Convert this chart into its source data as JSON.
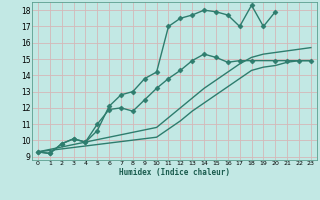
{
  "xlabel": "Humidex (Indice chaleur)",
  "background_color": "#c2e8e4",
  "grid_color": "#d4b8b8",
  "line_color": "#2e7d6e",
  "xlim": [
    -0.5,
    23.5
  ],
  "ylim": [
    8.8,
    18.5
  ],
  "xticks": [
    0,
    1,
    2,
    3,
    4,
    5,
    6,
    7,
    8,
    9,
    10,
    11,
    12,
    13,
    14,
    15,
    16,
    17,
    18,
    19,
    20,
    21,
    22,
    23
  ],
  "yticks": [
    9,
    10,
    11,
    12,
    13,
    14,
    15,
    16,
    17,
    18
  ],
  "series": [
    {
      "x": [
        0,
        1,
        2,
        3,
        4,
        5,
        6,
        7,
        8,
        9,
        10,
        11,
        12,
        13,
        14,
        15,
        16,
        17,
        18,
        19,
        20
      ],
      "y": [
        9.3,
        9.2,
        9.8,
        10.1,
        9.9,
        10.6,
        12.1,
        12.8,
        13.0,
        13.8,
        14.2,
        17.0,
        17.5,
        17.7,
        18.0,
        17.9,
        17.7,
        17.0,
        18.3,
        17.0,
        17.9
      ],
      "marker": "D",
      "markersize": 2.5,
      "linewidth": 1.0
    },
    {
      "x": [
        0,
        1,
        2,
        3,
        4,
        5,
        6,
        7,
        8,
        9,
        10,
        11,
        12,
        13,
        14,
        15,
        16,
        17,
        18,
        20,
        21,
        22,
        23
      ],
      "y": [
        9.3,
        9.2,
        9.8,
        10.1,
        9.9,
        11.0,
        11.9,
        12.0,
        11.8,
        12.5,
        13.2,
        13.8,
        14.3,
        14.9,
        15.3,
        15.1,
        14.8,
        14.9,
        14.9,
        14.9,
        14.9,
        14.9,
        14.9
      ],
      "marker": "D",
      "markersize": 2.5,
      "linewidth": 1.0
    },
    {
      "x": [
        0,
        10,
        11,
        12,
        13,
        14,
        15,
        16,
        17,
        18,
        19,
        20,
        21,
        22,
        23
      ],
      "y": [
        9.3,
        10.8,
        11.4,
        12.0,
        12.6,
        13.2,
        13.7,
        14.2,
        14.7,
        15.1,
        15.3,
        15.4,
        15.5,
        15.6,
        15.7
      ],
      "marker": null,
      "markersize": 0,
      "linewidth": 1.0
    },
    {
      "x": [
        0,
        10,
        11,
        12,
        13,
        14,
        15,
        16,
        17,
        18,
        19,
        20,
        21,
        22,
        23
      ],
      "y": [
        9.3,
        10.2,
        10.7,
        11.2,
        11.8,
        12.3,
        12.8,
        13.3,
        13.8,
        14.3,
        14.5,
        14.6,
        14.8,
        14.9,
        14.9
      ],
      "marker": null,
      "markersize": 0,
      "linewidth": 1.0
    }
  ]
}
